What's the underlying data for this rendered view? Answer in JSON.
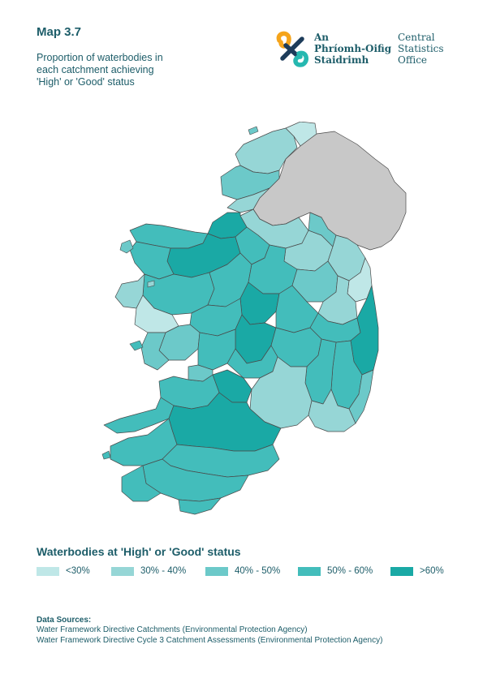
{
  "header": {
    "map_label": "Map 3.7",
    "subtitle_lines": [
      "Proportion of waterbodies in",
      "each catchment achieving",
      "'High' or 'Good' status"
    ]
  },
  "logo": {
    "irish_lines": [
      "An",
      "Phríomh-Oifig",
      "Staidrimh"
    ],
    "english_lines": [
      "Central",
      "Statistics",
      "Office"
    ],
    "colors": {
      "orange": "#f5a41b",
      "teal": "#26b8b0",
      "navy": "#1d3c5a"
    }
  },
  "map": {
    "colors": {
      "lt30": "#bfe7e7",
      "p30_40": "#96d6d6",
      "p40_50": "#6cc9c9",
      "p50_60": "#43bdbb",
      "gt60": "#1aa9a5",
      "no_data": "#c8c8c8",
      "boundary": "#4a4a4a"
    }
  },
  "legend": {
    "title": "Waterbodies at 'High' or 'Good' status",
    "items": [
      {
        "label": "<30%",
        "color": "#bfe7e7"
      },
      {
        "label": "30% - 40%",
        "color": "#96d6d6"
      },
      {
        "label": "40% - 50%",
        "color": "#6cc9c9"
      },
      {
        "label": "50% - 60%",
        "color": "#43bdbb"
      },
      {
        "label": ">60%",
        "color": "#1aa9a5"
      }
    ]
  },
  "sources": {
    "heading": "Data Sources:",
    "lines": [
      "Water Framework Directive Catchments (Environmental Protection Agency)",
      "Water Framework Directive Cycle 3 Catchment Assessments (Environmental Protection Agency)"
    ]
  }
}
